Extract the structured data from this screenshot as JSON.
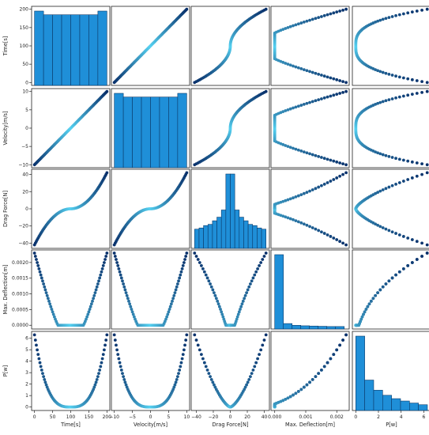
{
  "chart_data": {
    "type": "scatter",
    "kind": "pairplot",
    "variables": [
      {
        "key": "t",
        "label": "Time[s]",
        "range": [
          -8,
          208
        ],
        "ticks": [
          0,
          50,
          100,
          150,
          200
        ],
        "tick_labels": [
          "0",
          "50",
          "100",
          "150",
          "200"
        ]
      },
      {
        "key": "v",
        "label": "Velocity[m/s]",
        "range": [
          -10.8,
          10.8
        ],
        "ticks": [
          -10,
          -5,
          0,
          5,
          10
        ],
        "tick_labels": [
          "−10",
          "−5",
          "0",
          "5",
          "10"
        ]
      },
      {
        "key": "f",
        "label": "Drag Force[N]",
        "range": [
          -46,
          46
        ],
        "ticks": [
          -40,
          -20,
          0,
          20,
          40
        ],
        "tick_labels": [
          "−40",
          "−20",
          "0",
          "20",
          "40"
        ]
      },
      {
        "key": "d",
        "label": "Max. Deflection[m]",
        "range": [
          -0.00012,
          0.0024
        ],
        "ticks": [
          0,
          0.0005,
          0.001,
          0.0015,
          0.002
        ],
        "tick_labels": [
          "0.0000",
          "0.0005",
          "0.0010",
          "0.0015",
          "0.0020"
        ],
        "x_ticks": [
          0,
          0.001,
          0.002
        ],
        "x_tick_labels": [
          "0.000",
          "0.001",
          "0.002"
        ]
      },
      {
        "key": "p",
        "label": "P[w]",
        "range": [
          -0.3,
          6.6
        ],
        "ticks": [
          0,
          1,
          2,
          3,
          4,
          5,
          6
        ],
        "tick_labels": [
          "0",
          "1",
          "2",
          "3",
          "4",
          "5",
          "6"
        ],
        "x_ticks": [
          0,
          2,
          4,
          6
        ],
        "x_tick_labels": [
          "0",
          "2",
          "4",
          "6"
        ]
      }
    ],
    "point_colors": {
      "low": "#55d0f0",
      "high": "#08306b"
    },
    "bar_color": "#1f8fd8",
    "bar_edge": "#0b3a6a",
    "histograms": [
      {
        "var": "Time[s]",
        "bins": [
          0,
          25,
          50,
          75,
          100,
          125,
          150,
          175,
          200
        ],
        "counts": [
          40,
          38,
          38,
          38,
          38,
          38,
          38,
          40
        ]
      },
      {
        "var": "Velocity[m/s]",
        "bins": [
          -10,
          -7.5,
          -5,
          -2.5,
          0,
          2.5,
          5,
          7.5,
          10
        ],
        "counts": [
          40,
          38,
          38,
          38,
          38,
          38,
          38,
          40
        ]
      },
      {
        "var": "Drag Force[N]",
        "bins": [
          -42,
          -36.75,
          -31.5,
          -26.25,
          -21,
          -15.75,
          -10.5,
          -5.25,
          0,
          5.25,
          10.5,
          15.75,
          21,
          26.25,
          31.5,
          36.75,
          42
        ],
        "counts": [
          16,
          17,
          19,
          20,
          23,
          26,
          32,
          62,
          62,
          32,
          26,
          23,
          20,
          19,
          17,
          16
        ]
      },
      {
        "var": "Max. Deflection[m]",
        "bins": [
          0,
          0.00028,
          0.00056,
          0.00084,
          0.00112,
          0.0014,
          0.00168,
          0.00196,
          0.00224
        ],
        "counts": [
          300,
          22,
          15,
          13,
          12,
          11,
          10,
          10
        ]
      },
      {
        "var": "P[w]",
        "bins": [
          0,
          0.79,
          1.58,
          2.37,
          3.16,
          3.95,
          4.74,
          5.53,
          6.32
        ],
        "counts": [
          220,
          90,
          60,
          45,
          35,
          28,
          22,
          17
        ]
      }
    ],
    "title": "",
    "grid": false,
    "legend": "none"
  }
}
